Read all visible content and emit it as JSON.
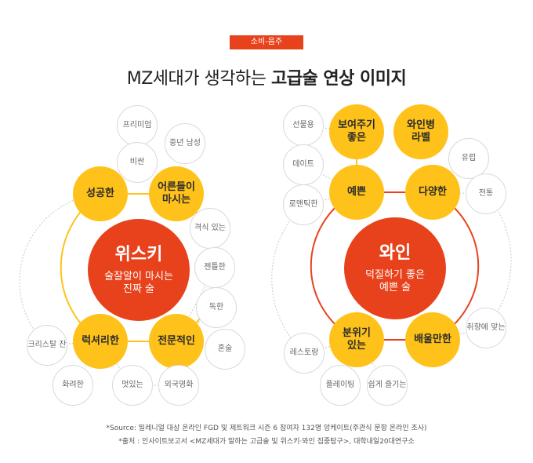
{
  "header": {
    "badge": "소비-음주",
    "title_regular": "MZ세대가 생각하는 ",
    "title_bold": "고급술 연상 이미지"
  },
  "colors": {
    "accent_red": "#e8421c",
    "accent_yellow": "#ffc21a"
  },
  "whisky": {
    "name": "위스키",
    "desc": "술잘알이 마시는\n진짜 술",
    "subs": [
      "성공한",
      "어른들이\n마시는",
      "럭셔리한",
      "전문적인"
    ],
    "keywords": [
      "프리미엄",
      "중년 남성",
      "비싼",
      "격식 있는",
      "젠틀한",
      "독한",
      "혼술",
      "크리스탈 잔",
      "화려한",
      "멋있는",
      "외국영화"
    ]
  },
  "wine": {
    "name": "와인",
    "desc": "덕질하기 좋은\n예쁜 술",
    "subs": [
      "보여주기\n좋은",
      "와인병\n라벨",
      "예쁜",
      "다양한",
      "분위기\n있는",
      "배울만한"
    ],
    "keywords": [
      "선물용",
      "데이트",
      "로맨틱한",
      "유럽",
      "전통",
      "취향에 맞는",
      "레스토랑",
      "플레이팅",
      "쉽게 즐기는"
    ]
  },
  "footer": {
    "source": "*Source: 밀레니얼 대상 온라인 FGD 및 제트워크 시즌 6 참여자 132명 앙케이트(주관식 문항 온라인 조사)",
    "citation": "*출처 : 인사이트보고서 <MZ세대가 말하는 고급술 및 위스키·와인 집중탐구>, 대학내일20대연구소"
  }
}
